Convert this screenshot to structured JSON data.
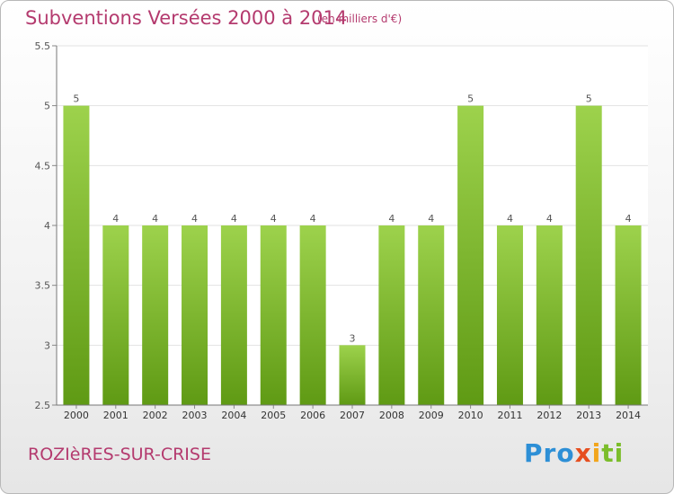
{
  "header": {
    "title": "Subventions Versées 2000 à 2014",
    "unit_note": "(en milliers d'€)"
  },
  "footer": {
    "commune": "ROZIèRES-SUR-CRISE",
    "logo": {
      "p1": "Pro",
      "p2": "x",
      "p3": "i",
      "p4": "ti"
    }
  },
  "colors": {
    "title": "#b43a6e",
    "bar_top": "#9dd24c",
    "bar_bottom": "#5f9a14"
  },
  "chart_data": {
    "type": "bar",
    "title": "Subventions Versées 2000 à 2014",
    "subtitle": "(en milliers d'€)",
    "xlabel": "",
    "ylabel": "",
    "categories": [
      "2000",
      "2001",
      "2002",
      "2003",
      "2004",
      "2005",
      "2006",
      "2007",
      "2008",
      "2009",
      "2010",
      "2011",
      "2012",
      "2013",
      "2014"
    ],
    "values": [
      5,
      4,
      4,
      4,
      4,
      4,
      4,
      3,
      4,
      4,
      5,
      4,
      4,
      5,
      4
    ],
    "ylim": [
      2.5,
      5.5
    ],
    "yticks": [
      2.5,
      3,
      3.5,
      4,
      4.5,
      5,
      5.5
    ],
    "ytick_labels": [
      "2.5",
      "3",
      "3.5",
      "4",
      "4.5",
      "5",
      "5.5"
    ],
    "grid": true,
    "legend": "none"
  }
}
